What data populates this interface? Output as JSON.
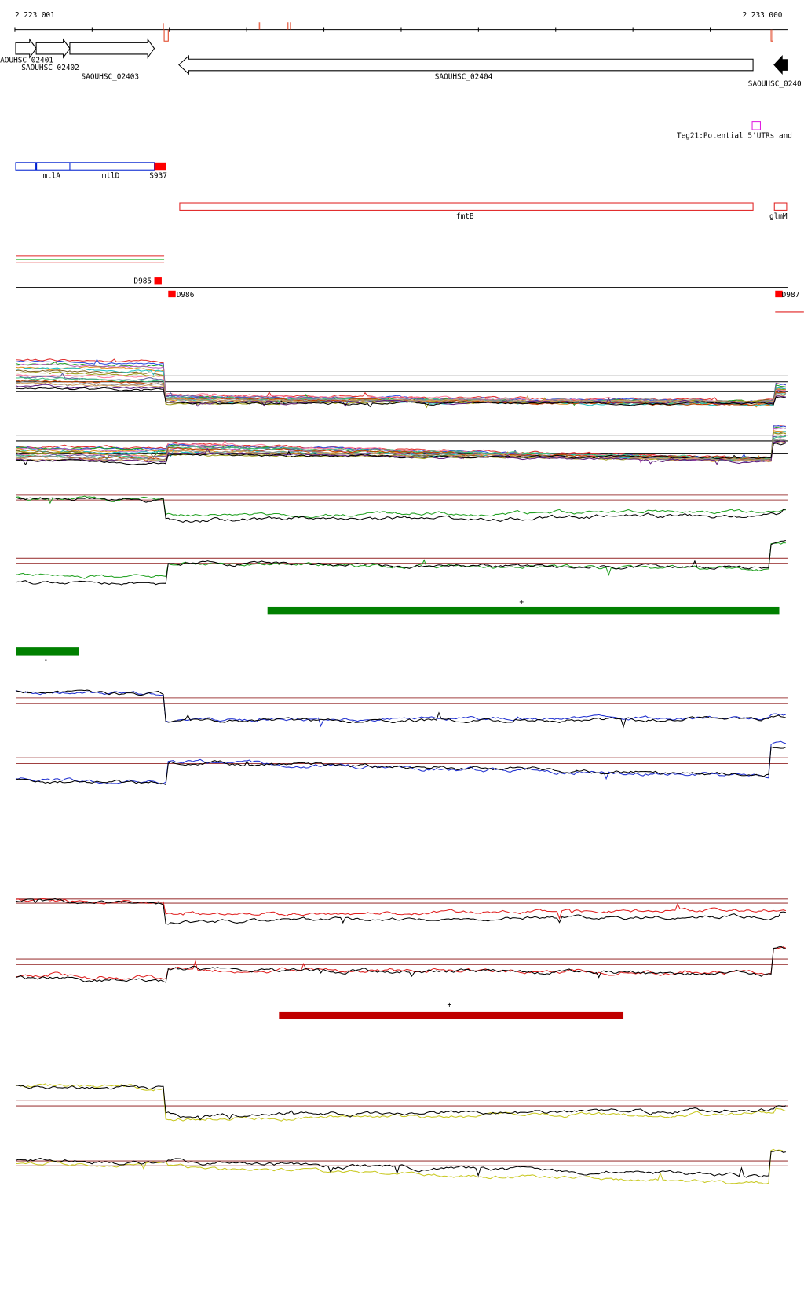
{
  "ruler": {
    "start": "2 223 001",
    "end": "2 233 000"
  },
  "genes": [
    "AOUHSC_02401",
    "SAOUHSC_02402",
    "SAOUHSC_02403",
    "SAOUHSC_02404",
    "SAOUHSC_0240"
  ],
  "annotation": "Teg21:Potential 5'UTRs and",
  "features": [
    "mtlA",
    "mtlD",
    "S937",
    "fmtB",
    "glmM"
  ],
  "regions": [
    "D985",
    "D986",
    "D987"
  ],
  "strand_markers": [
    "+",
    "-",
    "+"
  ]
}
